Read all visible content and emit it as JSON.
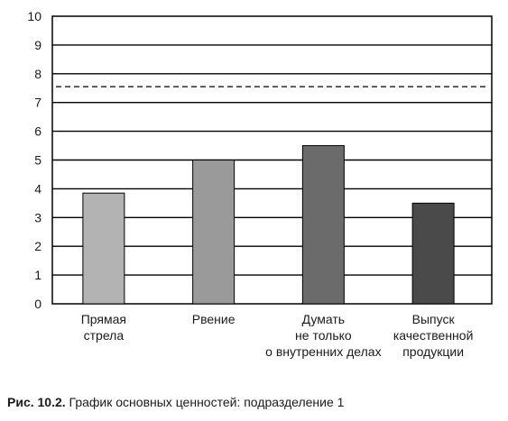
{
  "chart_data": {
    "type": "bar",
    "categories": [
      [
        "Прямая",
        "стрела"
      ],
      [
        "Рвение"
      ],
      [
        "Думать",
        "не только",
        "о внутренних делах"
      ],
      [
        "Выпуск",
        "качественной",
        "продукции"
      ]
    ],
    "values": [
      3.85,
      5.0,
      5.5,
      3.5
    ],
    "bar_colors": [
      "#b3b3b3",
      "#9a9a9a",
      "#6b6b6b",
      "#4a4a4a"
    ],
    "ylim": [
      0,
      10
    ],
    "yticks": [
      0,
      1,
      2,
      3,
      4,
      5,
      6,
      7,
      8,
      9,
      10
    ],
    "reference_line": 7.55,
    "grid": true,
    "title": "",
    "xlabel": "",
    "ylabel": ""
  },
  "caption": {
    "label": "Рис. 10.2.",
    "text": "График основных ценностей: подразделение 1"
  }
}
